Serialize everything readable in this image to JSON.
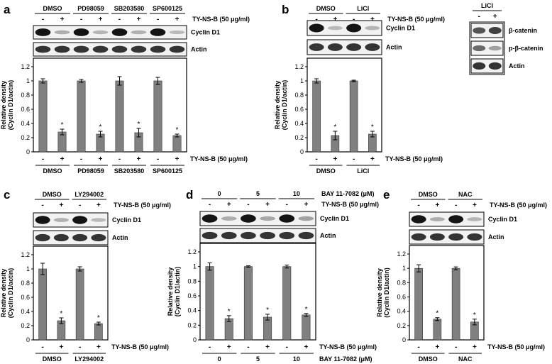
{
  "figure": {
    "style": {
      "bar_color": "#808080",
      "text_color": "#000000",
      "line_color": "#000000"
    },
    "panels": [
      {
        "letter": "a",
        "header_groups": [
          "DMSO",
          "PD98059",
          "SB203580",
          "SP600125"
        ],
        "lane_signs": [
          "-",
          "+",
          "-",
          "+",
          "-",
          "+",
          "-",
          "+"
        ],
        "treatment_label": "TY-NS-B (50 μg/ml)",
        "blot_labels": [
          "Cyclin D1",
          "Actin"
        ]
      },
      {
        "letter": "b",
        "header_groups": [
          "DMSO",
          "LiCl"
        ],
        "lane_signs": [
          "-",
          "+",
          "-",
          "+"
        ],
        "treatment_label": "TY-NS-B (50 μg/ml)",
        "blot_labels": [
          "Cyclin D1",
          "Actin"
        ],
        "side_blot": {
          "header": "LiCl",
          "lane_signs": [
            "-",
            "+"
          ],
          "labels": [
            "β-catenin",
            "p-β-catenin",
            "Actin"
          ]
        }
      },
      {
        "letter": "c",
        "header_groups": [
          "DMSO",
          "LY294002"
        ],
        "lane_signs": [
          "-",
          "+",
          "-",
          "+"
        ],
        "treatment_label": "TY-NS-B (50 μg/ml)",
        "blot_labels": [
          "Cyclin D1",
          "Actin"
        ]
      },
      {
        "letter": "d",
        "header_groups": [
          "0",
          "5",
          "10"
        ],
        "header_label": "BAY 11-7082 (μM)",
        "lane_signs": [
          "-",
          "+",
          "-",
          "+",
          "-",
          "+"
        ],
        "treatment_label": "TY-NS-B (50 μg/ml)",
        "blot_labels": [
          "Cyclin D1",
          "Actin"
        ]
      },
      {
        "letter": "e",
        "header_groups": [
          "DMSO",
          "NAC"
        ],
        "lane_signs": [
          "-",
          "+",
          "-",
          "+"
        ],
        "treatment_label": "TY-NS-B (50 μg/ml)",
        "blot_labels": [
          "Cyclin D1",
          "Actin"
        ]
      }
    ]
  },
  "chart_data": [
    {
      "panel": "a",
      "type": "bar",
      "ylabel": "Relative density\n(Cyclin D1/actin)",
      "ylim": [
        0,
        1.2
      ],
      "yticks": [
        "0",
        "0.2",
        "0.4",
        "0.6",
        "0.8",
        "1",
        "1.2"
      ],
      "treatment_signs": [
        "-",
        "+",
        "-",
        "+",
        "-",
        "+",
        "-",
        "+"
      ],
      "treatment_label": "TY-NS-B (50 μg/ml)",
      "group_labels": [
        "DMSO",
        "PD98059",
        "SB203580",
        "SP600125"
      ],
      "values": [
        1.0,
        0.28,
        1.0,
        0.25,
        1.0,
        0.27,
        1.0,
        0.23
      ],
      "errors": [
        0.03,
        0.04,
        0.02,
        0.04,
        0.06,
        0.06,
        0.05,
        0.02
      ],
      "significant": [
        false,
        true,
        false,
        true,
        false,
        true,
        false,
        true
      ],
      "marker": "*"
    },
    {
      "panel": "b",
      "type": "bar",
      "ylabel": "Relative density\n(Cyclin D1/actin)",
      "ylim": [
        0,
        1.2
      ],
      "yticks": [
        "0",
        "0.2",
        "0.4",
        "0.6",
        "0.8",
        "1",
        "1.2"
      ],
      "treatment_signs": [
        "-",
        "+",
        "-",
        "+"
      ],
      "treatment_label": "TY-NS-B (50 μg/ml)",
      "group_labels": [
        "DMSO",
        "LiCl"
      ],
      "values": [
        1.0,
        0.23,
        1.0,
        0.25
      ],
      "errors": [
        0.03,
        0.06,
        0.01,
        0.04
      ],
      "significant": [
        false,
        true,
        false,
        true
      ],
      "marker": "*"
    },
    {
      "panel": "c",
      "type": "bar",
      "ylabel": "Relative density\n(Cyclin D1/actin)",
      "ylim": [
        0,
        1.2
      ],
      "yticks": [
        "0",
        "0.2",
        "0.4",
        "0.6",
        "0.8",
        "1",
        "1.2"
      ],
      "treatment_signs": [
        "-",
        "+",
        "-",
        "+"
      ],
      "treatment_label": "TY-NS-B (50 μg/ml)",
      "group_labels": [
        "DMSO",
        "LY294002"
      ],
      "values": [
        1.0,
        0.27,
        1.0,
        0.23
      ],
      "errors": [
        0.08,
        0.04,
        0.03,
        0.02
      ],
      "significant": [
        false,
        true,
        false,
        true
      ],
      "marker": "*"
    },
    {
      "panel": "d",
      "type": "bar",
      "ylabel": "Relative density\n(Cyclin D1/actin)",
      "ylim": [
        0,
        1.2
      ],
      "yticks": [
        "0",
        "0.2",
        "0.4",
        "0.6",
        "0.8",
        "1",
        "1.2"
      ],
      "treatment_signs": [
        "-",
        "+",
        "-",
        "+",
        "-",
        "+"
      ],
      "treatment_label": "TY-NS-B (50 μg/ml)",
      "group_labels": [
        "0",
        "5",
        "10"
      ],
      "group_axis_label": "BAY 11-7082 (μM)",
      "values": [
        1.0,
        0.29,
        1.0,
        0.31,
        1.0,
        0.34
      ],
      "errors": [
        0.05,
        0.04,
        0.01,
        0.04,
        0.02,
        0.02
      ],
      "significant": [
        false,
        true,
        false,
        true,
        false,
        true
      ],
      "marker": "*"
    },
    {
      "panel": "e",
      "type": "bar",
      "ylabel": "Relative density\n(Cyclin D1/actin)",
      "ylim": [
        0,
        1.2
      ],
      "yticks": [
        "0",
        "0.2",
        "0.4",
        "0.6",
        "0.8",
        "1",
        "1.2"
      ],
      "treatment_signs": [
        "-",
        "+",
        "-",
        "+"
      ],
      "treatment_label": "TY-NS-B (50 μg/ml)",
      "group_labels": [
        "DMSO",
        "NAC"
      ],
      "values": [
        1.0,
        0.29,
        1.0,
        0.25
      ],
      "errors": [
        0.05,
        0.02,
        0.02,
        0.04
      ],
      "significant": [
        false,
        true,
        false,
        true
      ],
      "marker": "*"
    }
  ]
}
